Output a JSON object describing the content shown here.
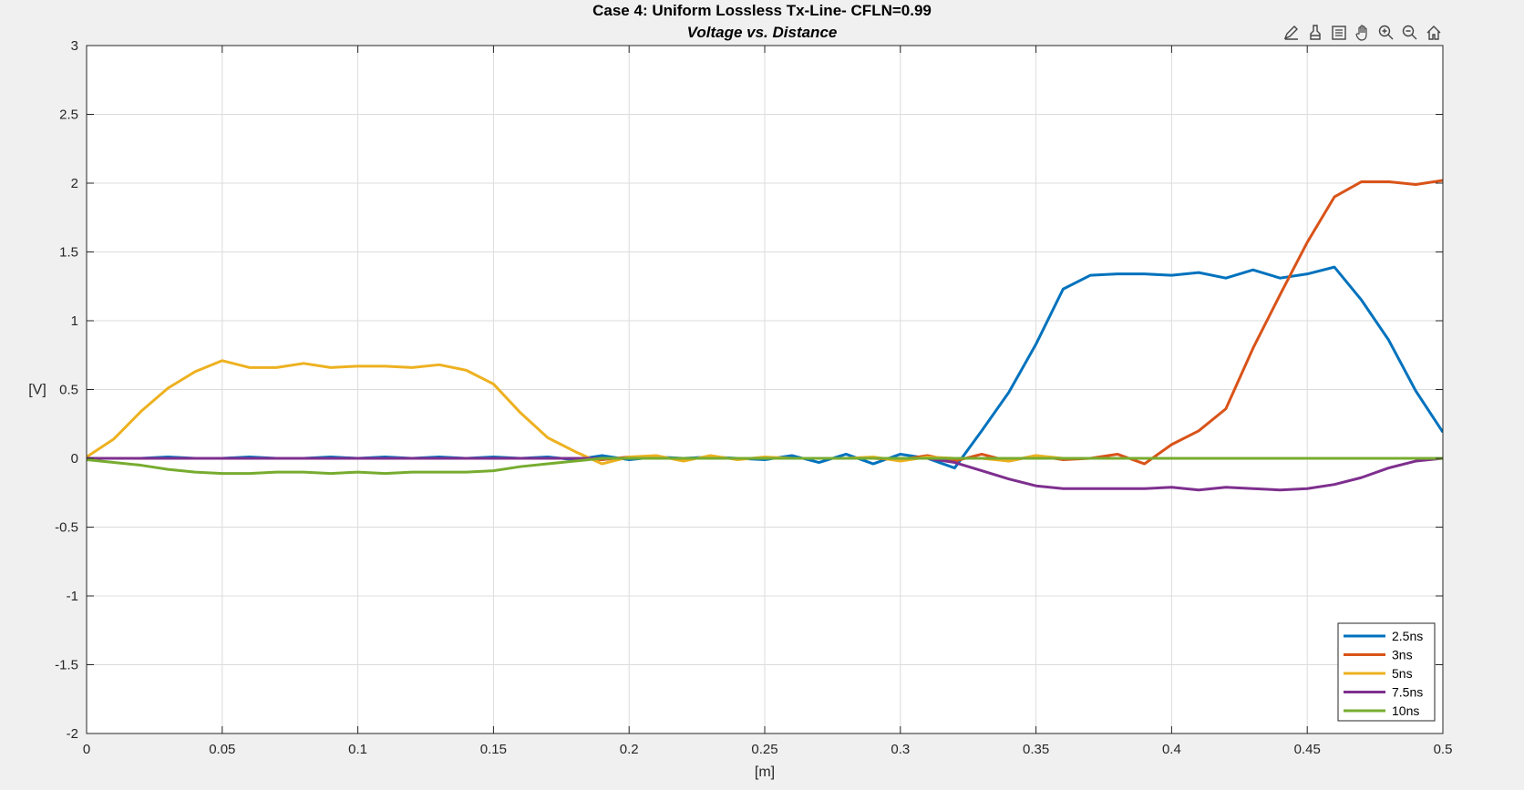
{
  "toolbar": {
    "icons": [
      "edit-icon",
      "brush-icon",
      "legend-icon",
      "pan-icon",
      "zoom-in-icon",
      "zoom-out-icon",
      "home-icon"
    ]
  },
  "chart_data": {
    "type": "line",
    "title": "Case 4: Uniform Lossless Tx-Line- CFLN=0.99",
    "subtitle": "Voltage vs. Distance",
    "xlabel": "[m]",
    "ylabel": "[V]",
    "xlim": [
      0,
      0.5
    ],
    "ylim": [
      -2,
      3
    ],
    "xticks": [
      0,
      0.05,
      0.1,
      0.15,
      0.2,
      0.25,
      0.3,
      0.35,
      0.4,
      0.45,
      0.5
    ],
    "xtick_labels": [
      "0",
      "0.05",
      "0.1",
      "0.15",
      "0.2",
      "0.25",
      "0.3",
      "0.35",
      "0.4",
      "0.45",
      "0.5"
    ],
    "yticks": [
      -2,
      -1.5,
      -1,
      -0.5,
      0,
      0.5,
      1,
      1.5,
      2,
      2.5,
      3
    ],
    "ytick_labels": [
      "-2",
      "-1.5",
      "-1",
      "-0.5",
      "0",
      "0.5",
      "1",
      "1.5",
      "2",
      "2.5",
      "3"
    ],
    "grid": true,
    "legend_position": "bottom-right",
    "x": [
      0,
      0.01,
      0.02,
      0.03,
      0.04,
      0.05,
      0.06,
      0.07,
      0.08,
      0.09,
      0.1,
      0.11,
      0.12,
      0.13,
      0.14,
      0.15,
      0.16,
      0.17,
      0.18,
      0.19,
      0.2,
      0.21,
      0.22,
      0.23,
      0.24,
      0.25,
      0.26,
      0.27,
      0.28,
      0.29,
      0.3,
      0.31,
      0.32,
      0.33,
      0.34,
      0.35,
      0.36,
      0.37,
      0.38,
      0.39,
      0.4,
      0.41,
      0.42,
      0.43,
      0.44,
      0.45,
      0.46,
      0.47,
      0.48,
      0.49,
      0.5
    ],
    "series": [
      {
        "name": "2.5ns",
        "color": "#0072bd",
        "values": [
          0,
          0,
          0,
          0.01,
          0,
          0,
          0.01,
          0,
          0,
          0.01,
          0,
          0.01,
          0,
          0.01,
          0,
          0.01,
          0,
          0.01,
          -0.01,
          0.02,
          -0.01,
          0.01,
          0,
          0.01,
          0,
          -0.01,
          0.02,
          -0.03,
          0.03,
          -0.04,
          0.03,
          0,
          -0.07,
          0.2,
          0.48,
          0.83,
          1.23,
          1.33,
          1.34,
          1.34,
          1.33,
          1.35,
          1.31,
          1.37,
          1.31,
          1.34,
          1.39,
          1.15,
          0.86,
          0.49,
          0.19
        ]
      },
      {
        "name": "3ns",
        "color": "#d95319",
        "values": [
          0,
          0,
          0,
          0,
          0,
          0,
          0,
          0,
          0,
          0,
          0,
          0,
          0,
          0,
          0,
          0,
          0,
          0,
          0,
          -0.01,
          0.01,
          0,
          0,
          0,
          0,
          0,
          0,
          0,
          0,
          0,
          -0.01,
          0.02,
          -0.02,
          0.03,
          -0.02,
          0.02,
          -0.01,
          0,
          0.03,
          -0.04,
          0.1,
          0.2,
          0.36,
          0.8,
          1.19,
          1.57,
          1.9,
          2.01,
          2.01,
          1.99,
          2.02
        ]
      },
      {
        "name": "5ns",
        "color": "#edb120",
        "values": [
          0.01,
          0.14,
          0.34,
          0.51,
          0.63,
          0.71,
          0.66,
          0.66,
          0.69,
          0.66,
          0.67,
          0.67,
          0.66,
          0.68,
          0.64,
          0.54,
          0.33,
          0.15,
          0.05,
          -0.04,
          0.01,
          0.02,
          -0.02,
          0.02,
          -0.01,
          0.01,
          0,
          0,
          0,
          0.01,
          -0.02,
          0.01,
          0,
          0,
          -0.02,
          0.02,
          0,
          0,
          0,
          0,
          0,
          0,
          0,
          0,
          0,
          0,
          0,
          0,
          0,
          0,
          0
        ]
      },
      {
        "name": "7.5ns",
        "color": "#7e2f8e",
        "values": [
          0,
          0,
          0,
          0,
          0,
          0,
          0,
          0,
          0,
          0,
          0,
          0,
          0,
          0,
          0,
          0,
          0,
          0,
          0,
          0,
          0,
          0,
          0,
          0,
          0,
          0,
          0,
          0,
          0,
          0,
          0,
          0,
          -0.03,
          -0.09,
          -0.15,
          -0.2,
          -0.22,
          -0.22,
          -0.22,
          -0.22,
          -0.21,
          -0.23,
          -0.21,
          -0.22,
          -0.23,
          -0.22,
          -0.19,
          -0.14,
          -0.07,
          -0.02,
          0
        ]
      },
      {
        "name": "10ns",
        "color": "#77ac30",
        "values": [
          -0.01,
          -0.03,
          -0.05,
          -0.08,
          -0.1,
          -0.11,
          -0.11,
          -0.1,
          -0.1,
          -0.11,
          -0.1,
          -0.11,
          -0.1,
          -0.1,
          -0.1,
          -0.09,
          -0.06,
          -0.04,
          -0.02,
          0,
          0,
          0,
          0,
          0,
          0,
          0,
          0,
          0,
          0,
          0,
          0,
          0,
          0,
          0,
          0,
          0,
          0,
          0,
          0,
          0,
          0,
          0,
          0,
          0,
          0,
          0,
          0,
          0,
          0,
          0,
          0
        ]
      }
    ]
  }
}
